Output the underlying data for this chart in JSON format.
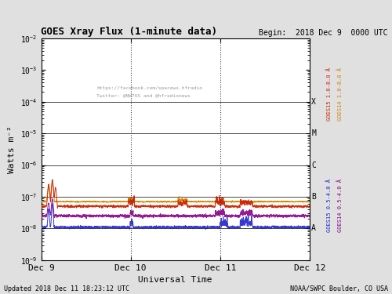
{
  "title_left": "GOES Xray Flux (1-minute data)",
  "title_right": "Begin:  2018 Dec 9  0000 UTC",
  "xlabel": "Universal Time",
  "ylabel": "Watts m⁻²",
  "footer_left": "Updated 2018 Dec 11 18:23:12 UTC",
  "footer_right": "NOAA/SWPC Boulder, CO USA",
  "watermark_line1": "https://facebook.com/spacewx.hfradio",
  "watermark_line2": "Twitter: @NW7US and @hfradionews",
  "xlim_days": [
    0,
    3.0
  ],
  "ylim": [
    1e-09,
    0.01
  ],
  "x_ticks_days": [
    0,
    1,
    2,
    3
  ],
  "x_tick_labels": [
    "Dec 9",
    "Dec 10",
    "Dec 11",
    "Dec 12"
  ],
  "vline_days": [
    1.0,
    2.0
  ],
  "hlines": [
    1e-08,
    1e-07,
    1e-06,
    1e-05,
    0.0001
  ],
  "bg_color": "#e0e0e0",
  "plot_bg_color": "#ffffff",
  "goes15_long_color": "#cc2200",
  "goes14_long_color": "#cc8800",
  "goes15_short_color": "#2222cc",
  "goes14_short_color": "#880088",
  "noise_seed": 42,
  "n_points": 4320
}
